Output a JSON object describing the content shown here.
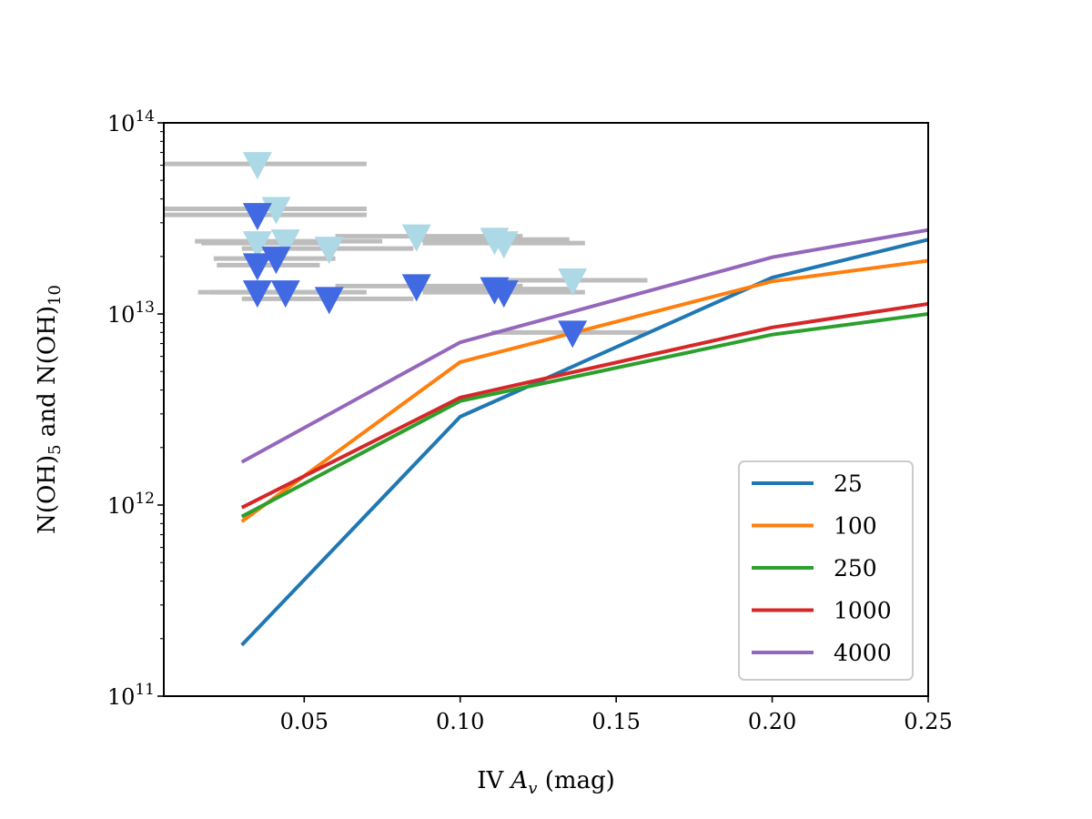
{
  "chart_data": {
    "type": "line",
    "title": "",
    "xlabel": "IV A_v (mag)",
    "xlabel_parts": {
      "prefix": "IV ",
      "var": "A",
      "sub": "v",
      "suffix": " (mag)"
    },
    "ylabel": "N(OH)_5 and N(OH)_10",
    "ylabel_parts": {
      "p1": "N(OH)",
      "s1": "5",
      "mid": " and N(OH)",
      "s2": "10"
    },
    "xlim": [
      0.005,
      0.25
    ],
    "ylim": [
      100000000000.0,
      100000000000000.0
    ],
    "yscale": "log",
    "x_ticks": [
      {
        "value": 0.05,
        "label": "0.05"
      },
      {
        "value": 0.1,
        "label": "0.10"
      },
      {
        "value": 0.15,
        "label": "0.15"
      },
      {
        "value": 0.2,
        "label": "0.20"
      },
      {
        "value": 0.25,
        "label": "0.25"
      }
    ],
    "y_ticks": [
      {
        "value": 100000000000.0,
        "base": "10",
        "exp": "11"
      },
      {
        "value": 1000000000000.0,
        "base": "10",
        "exp": "12"
      },
      {
        "value": 10000000000000.0,
        "base": "10",
        "exp": "13"
      },
      {
        "value": 100000000000000.0,
        "base": "10",
        "exp": "14"
      }
    ],
    "legend_position": "lower-right",
    "series": [
      {
        "name": "25",
        "color": "#1f77b4",
        "x": [
          0.03,
          0.1,
          0.2,
          0.25
        ],
        "y": [
          185000000000.0,
          2900000000000.0,
          15500000000000.0,
          24500000000000.0
        ]
      },
      {
        "name": "100",
        "color": "#ff7f0e",
        "x": [
          0.03,
          0.1,
          0.2,
          0.25
        ],
        "y": [
          820000000000.0,
          5600000000000.0,
          14800000000000.0,
          19000000000000.0
        ]
      },
      {
        "name": "250",
        "color": "#2ca02c",
        "x": [
          0.03,
          0.1,
          0.2,
          0.25
        ],
        "y": [
          870000000000.0,
          3500000000000.0,
          7800000000000.0,
          10000000000000.0
        ]
      },
      {
        "name": "1000",
        "color": "#d62728",
        "x": [
          0.03,
          0.1,
          0.2,
          0.25
        ],
        "y": [
          970000000000.0,
          3650000000000.0,
          8500000000000.0,
          11300000000000.0
        ]
      },
      {
        "name": "4000",
        "color": "#9467bd",
        "x": [
          0.03,
          0.1,
          0.2,
          0.25
        ],
        "y": [
          1680000000000.0,
          7100000000000.0,
          19800000000000.0,
          27500000000000.0
        ]
      }
    ],
    "upper_limits": [
      {
        "group": "OH_10",
        "color": "#add8e6",
        "x": 0.035,
        "y": 61000000000000.0,
        "xerr": [
          0.005,
          0.07
        ]
      },
      {
        "group": "OH_10",
        "color": "#add8e6",
        "x": 0.041,
        "y": 35500000000000.0,
        "xerr": [
          0.005,
          0.07
        ]
      },
      {
        "group": "OH_10",
        "color": "#add8e6",
        "x": 0.035,
        "y": 23500000000000.0,
        "xerr": [
          0.017,
          0.06
        ]
      },
      {
        "group": "OH_10",
        "color": "#add8e6",
        "x": 0.044,
        "y": 24000000000000.0,
        "xerr": [
          0.015,
          0.075
        ]
      },
      {
        "group": "OH_10",
        "color": "#add8e6",
        "x": 0.058,
        "y": 22000000000000.0,
        "xerr": [
          0.03,
          0.085
        ]
      },
      {
        "group": "OH_10",
        "color": "#add8e6",
        "x": 0.086,
        "y": 25500000000000.0,
        "xerr": [
          0.06,
          0.12
        ]
      },
      {
        "group": "OH_10",
        "color": "#add8e6",
        "x": 0.111,
        "y": 24500000000000.0,
        "xerr": [
          0.085,
          0.135
        ]
      },
      {
        "group": "OH_10",
        "color": "#add8e6",
        "x": 0.114,
        "y": 23500000000000.0,
        "xerr": [
          0.088,
          0.14
        ]
      },
      {
        "group": "OH_10",
        "color": "#add8e6",
        "x": 0.136,
        "y": 15000000000000.0,
        "xerr": [
          0.11,
          0.16
        ]
      },
      {
        "group": "OH_5",
        "color": "#4169e1",
        "x": 0.035,
        "y": 33000000000000.0,
        "xerr": [
          0.005,
          0.07
        ]
      },
      {
        "group": "OH_5",
        "color": "#4169e1",
        "x": 0.035,
        "y": 18000000000000.0,
        "xerr": [
          0.022,
          0.055
        ]
      },
      {
        "group": "OH_5",
        "color": "#4169e1",
        "x": 0.041,
        "y": 19500000000000.0,
        "xerr": [
          0.021,
          0.06
        ]
      },
      {
        "group": "OH_5",
        "color": "#4169e1",
        "x": 0.035,
        "y": 13000000000000.0,
        "xerr": [
          0.016,
          0.06
        ]
      },
      {
        "group": "OH_5",
        "color": "#4169e1",
        "x": 0.044,
        "y": 13000000000000.0,
        "xerr": [
          0.02,
          0.07
        ]
      },
      {
        "group": "OH_5",
        "color": "#4169e1",
        "x": 0.058,
        "y": 12000000000000.0,
        "xerr": [
          0.03,
          0.085
        ]
      },
      {
        "group": "OH_5",
        "color": "#4169e1",
        "x": 0.086,
        "y": 14000000000000.0,
        "xerr": [
          0.06,
          0.12
        ]
      },
      {
        "group": "OH_5",
        "color": "#4169e1",
        "x": 0.111,
        "y": 13500000000000.0,
        "xerr": [
          0.085,
          0.135
        ]
      },
      {
        "group": "OH_5",
        "color": "#4169e1",
        "x": 0.114,
        "y": 13000000000000.0,
        "xerr": [
          0.088,
          0.14
        ]
      },
      {
        "group": "OH_5",
        "color": "#4169e1",
        "x": 0.136,
        "y": 8000000000000.0,
        "xerr": [
          0.11,
          0.16
        ]
      }
    ]
  }
}
